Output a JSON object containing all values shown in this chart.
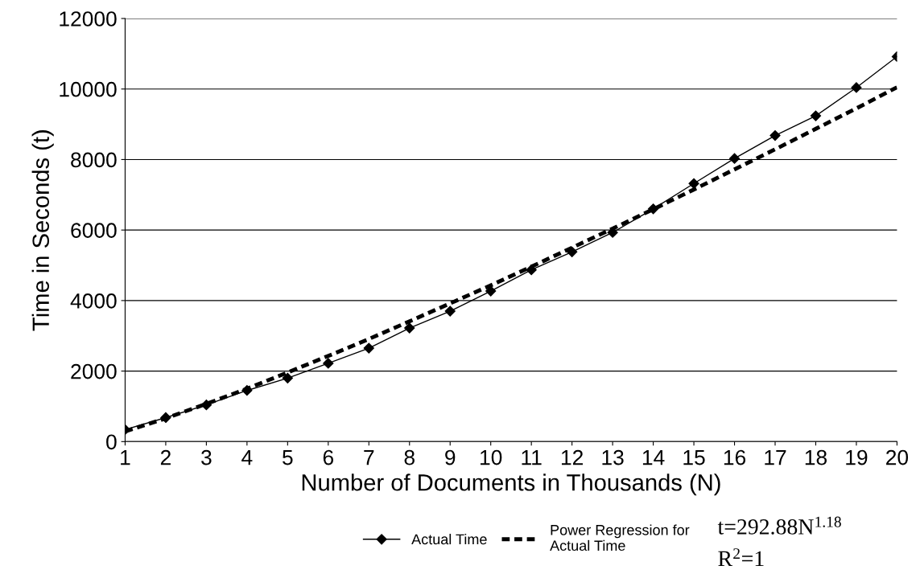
{
  "chart_data": {
    "type": "line",
    "xlabel": "Number of Documents in Thousands (N)",
    "ylabel": "Time in Seconds (t)",
    "x": [
      1,
      2,
      3,
      4,
      5,
      6,
      7,
      8,
      9,
      10,
      11,
      12,
      13,
      14,
      15,
      16,
      17,
      18,
      19,
      20
    ],
    "series": [
      {
        "name": "Actual Time",
        "color": "#000000",
        "marker": "diamond",
        "line_style": "solid",
        "values": [
          340,
          680,
          1040,
          1450,
          1800,
          2220,
          2650,
          3220,
          3700,
          4270,
          4870,
          5380,
          5930,
          6600,
          7320,
          8030,
          8680,
          9240,
          10040,
          10920
        ]
      },
      {
        "name": "Power Regression for\nActual Time",
        "color": "#000000",
        "marker": "none",
        "line_style": "dashed",
        "values": [
          290,
          660,
          1070,
          1500,
          1960,
          2430,
          2910,
          3410,
          3920,
          4430,
          4960,
          5500,
          6040,
          6590,
          7150,
          7720,
          8290,
          8870,
          9450,
          10050
        ]
      }
    ],
    "xlim": [
      1,
      20
    ],
    "xticks": [
      1,
      2,
      3,
      4,
      5,
      6,
      7,
      8,
      9,
      10,
      11,
      12,
      13,
      14,
      15,
      16,
      17,
      18,
      19,
      20
    ],
    "ylim": [
      0,
      12000
    ],
    "yticks": [
      0,
      2000,
      4000,
      6000,
      8000,
      10000,
      12000
    ],
    "grid": "y",
    "legend": "bottom",
    "annotations": [
      "t=292.88N$^{1.18}$",
      "R$^{2}$=1"
    ]
  }
}
